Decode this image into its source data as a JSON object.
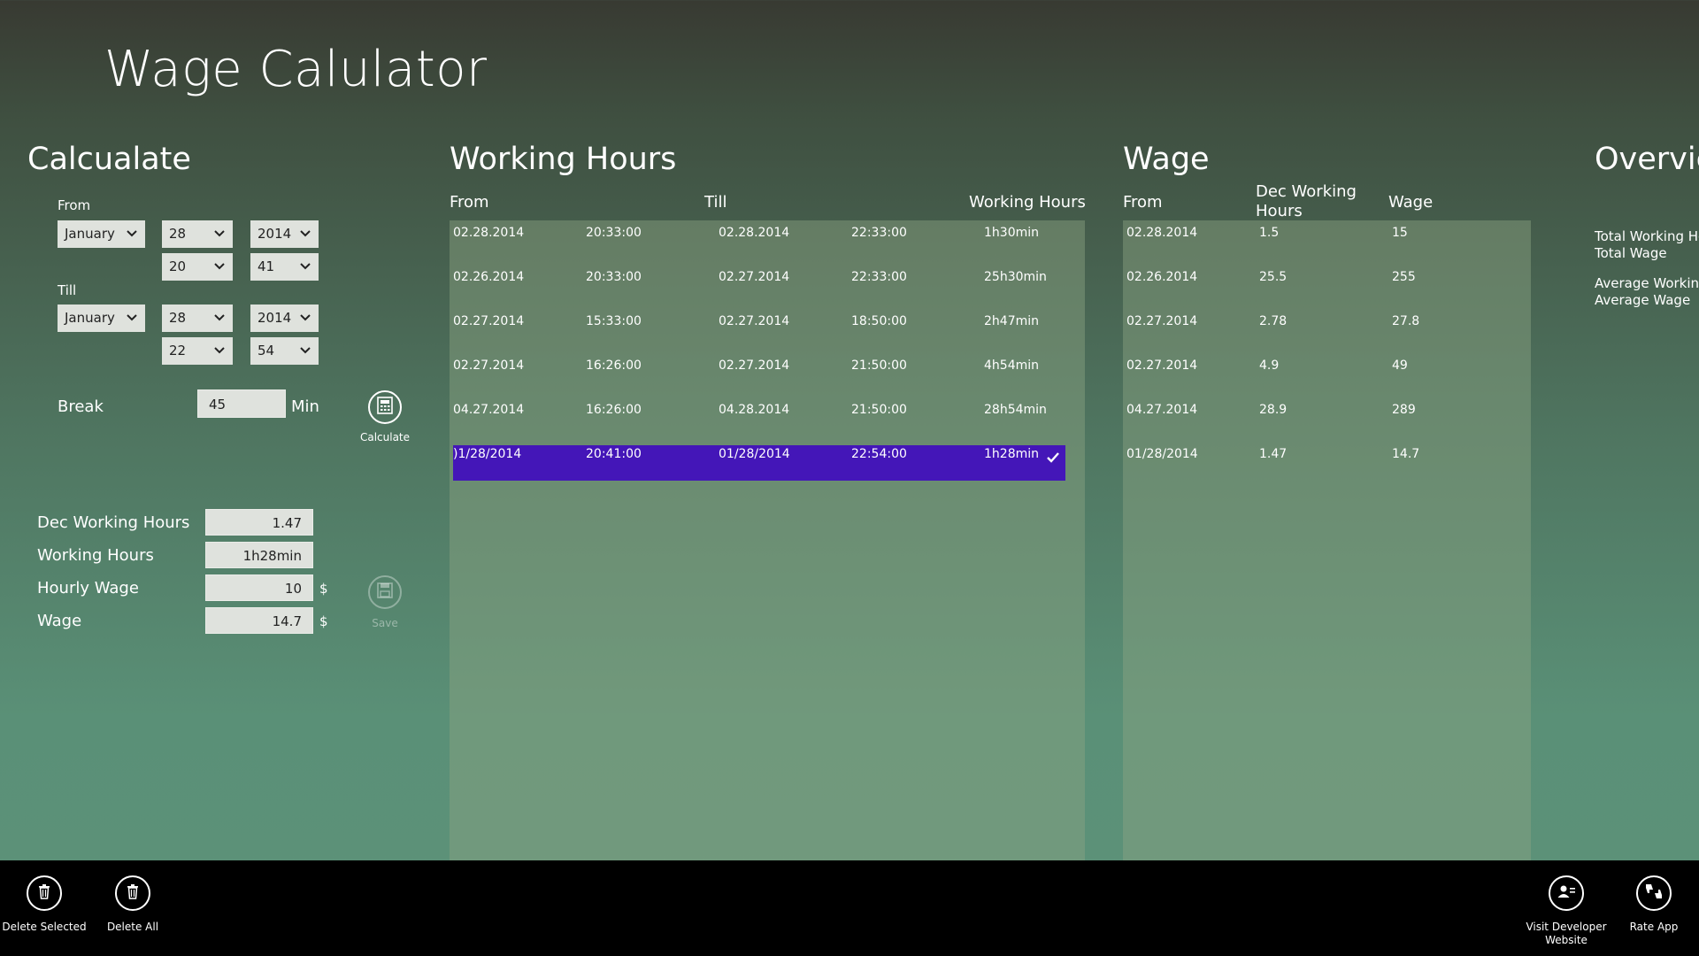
{
  "app_title": "Wage Calulator",
  "calculate": {
    "title": "Calcualate",
    "from_label": "From",
    "from": {
      "month": "January",
      "day": "28",
      "year": "2014",
      "hour": "20",
      "minute": "41"
    },
    "till_label": "Till",
    "till": {
      "month": "January",
      "day": "28",
      "year": "2014",
      "hour": "22",
      "minute": "54"
    },
    "break_label": "Break",
    "break_value": "45",
    "break_unit": "Min",
    "calculate_label": "Calculate",
    "results": {
      "dec_hours_label": "Dec Working Hours",
      "dec_hours_value": "1.47",
      "working_hours_label": "Working Hours",
      "working_hours_value": "1h28min",
      "hourly_wage_label": "Hourly Wage",
      "hourly_wage_value": "10",
      "wage_label": "Wage",
      "wage_value": "14.7",
      "currency": "$"
    },
    "save_label": "Save"
  },
  "working_hours": {
    "title": "Working Hours",
    "headers": {
      "from": "From",
      "till": "Till",
      "hours": "Working Hours"
    },
    "rows": [
      {
        "from_date": "02.28.2014",
        "from_time": "20:33:00",
        "till_date": "02.28.2014",
        "till_time": "22:33:00",
        "hours": "1h30min"
      },
      {
        "from_date": "02.26.2014",
        "from_time": "20:33:00",
        "till_date": "02.27.2014",
        "till_time": "22:33:00",
        "hours": "25h30min"
      },
      {
        "from_date": "02.27.2014",
        "from_time": "15:33:00",
        "till_date": "02.27.2014",
        "till_time": "18:50:00",
        "hours": "2h47min"
      },
      {
        "from_date": "02.27.2014",
        "from_time": "16:26:00",
        "till_date": "02.27.2014",
        "till_time": "21:50:00",
        "hours": "4h54min"
      },
      {
        "from_date": "04.27.2014",
        "from_time": "16:26:00",
        "till_date": "04.28.2014",
        "till_time": "21:50:00",
        "hours": "28h54min"
      },
      {
        "from_date": ")1/28/2014",
        "from_time": "20:41:00",
        "till_date": "01/28/2014",
        "till_time": "22:54:00",
        "hours": "1h28min",
        "selected": true
      }
    ]
  },
  "wage": {
    "title": "Wage",
    "headers": {
      "from": "From",
      "dec_hours": "Dec Working Hours",
      "wage": "Wage"
    },
    "rows": [
      {
        "from": "02.28.2014",
        "dec_hours": "1.5",
        "wage": "15"
      },
      {
        "from": "02.26.2014",
        "dec_hours": "25.5",
        "wage": "255"
      },
      {
        "from": "02.27.2014",
        "dec_hours": "2.78",
        "wage": "27.8"
      },
      {
        "from": "02.27.2014",
        "dec_hours": "4.9",
        "wage": "49"
      },
      {
        "from": "04.27.2014",
        "dec_hours": "28.9",
        "wage": "289"
      },
      {
        "from": "01/28/2014",
        "dec_hours": "1.47",
        "wage": "14.7"
      }
    ]
  },
  "overview": {
    "title": "Overvie",
    "total_hours_label": "Total Working Ho",
    "total_wage_label": "Total Wage",
    "avg_hours_label": "Average Working",
    "avg_wage_label": "Average Wage"
  },
  "app_bar": {
    "delete_selected": "Delete Selected",
    "delete_all": "Delete All",
    "visit_dev_line1": "Visit Developer",
    "visit_dev_line2": "Website",
    "rate_app": "Rate App"
  },
  "colors": {
    "selection": "#4416b8",
    "appbar_bg": "#000000"
  }
}
